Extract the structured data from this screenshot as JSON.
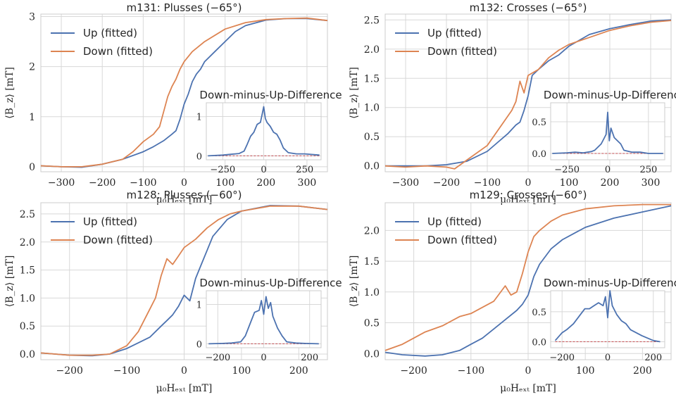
{
  "chart_data": [
    {
      "type": "line",
      "title": "m131: Plusses (−65°)",
      "xlabel": "μ₀Hₑₓₜ [mT]",
      "ylabel": "⟨B_z⟩ [mT]",
      "xlim": [
        -350,
        350
      ],
      "ylim": [
        -0.1,
        3.05
      ],
      "xticks": [
        -300,
        -200,
        -100,
        0,
        100,
        200,
        300
      ],
      "xtick_labels": [
        "−300",
        "−200",
        "−100",
        "0",
        "100",
        "200",
        "300"
      ],
      "yticks": [
        0,
        1,
        2,
        3
      ],
      "ytick_labels": [
        "0",
        "1",
        "2",
        "3"
      ],
      "legend_position": "upper-left",
      "series": [
        {
          "name": "Up (fitted)",
          "color": "#4c72b0",
          "x": [
            -350,
            -300,
            -250,
            -200,
            -150,
            -100,
            -75,
            -50,
            -30,
            -20,
            -10,
            0,
            10,
            20,
            30,
            40,
            50,
            75,
            100,
            125,
            150,
            200,
            250,
            300,
            350
          ],
          "y": [
            0.02,
            0.0,
            -0.01,
            0.05,
            0.15,
            0.3,
            0.4,
            0.52,
            0.65,
            0.72,
            0.95,
            1.25,
            1.45,
            1.7,
            1.85,
            1.95,
            2.1,
            2.3,
            2.5,
            2.7,
            2.82,
            2.93,
            2.96,
            2.96,
            2.92
          ]
        },
        {
          "name": "Down (fitted)",
          "color": "#dd8452",
          "x": [
            -350,
            -300,
            -250,
            -200,
            -150,
            -125,
            -100,
            -75,
            -60,
            -50,
            -40,
            -30,
            -20,
            -10,
            0,
            20,
            50,
            100,
            150,
            200,
            250,
            300,
            350
          ],
          "y": [
            0.02,
            0.0,
            0.0,
            0.05,
            0.15,
            0.3,
            0.5,
            0.65,
            0.8,
            1.1,
            1.4,
            1.6,
            1.75,
            1.95,
            2.1,
            2.3,
            2.5,
            2.75,
            2.88,
            2.94,
            2.96,
            2.97,
            2.92
          ]
        }
      ],
      "inset": {
        "title": "Down-minus-Up-Difference",
        "xlim": [
          -350,
          350
        ],
        "ylim": [
          -0.1,
          1.35
        ],
        "xticks": [
          -250,
          0,
          250
        ],
        "xtick_labels": [
          "−250",
          "0",
          "250"
        ],
        "yticks": [
          0,
          1
        ],
        "ytick_labels": [
          "0",
          "1"
        ],
        "line_color": "#4c72b0",
        "zero_line_color": "#c44e52",
        "x": [
          -340,
          -250,
          -200,
          -150,
          -120,
          -100,
          -80,
          -60,
          -40,
          -20,
          -10,
          0,
          10,
          20,
          40,
          60,
          80,
          100,
          120,
          150,
          200,
          250,
          340
        ],
        "y": [
          0.0,
          0.02,
          0.04,
          0.06,
          0.12,
          0.3,
          0.5,
          0.6,
          0.8,
          0.85,
          1.05,
          1.25,
          0.95,
          0.85,
          0.75,
          0.6,
          0.55,
          0.4,
          0.2,
          0.08,
          0.05,
          0.05,
          0.02
        ]
      }
    },
    {
      "type": "line",
      "title": "m132: Crosses (−65°)",
      "xlabel": "μ₀Hₑₓₜ [mT]",
      "ylabel": "⟨B_z⟩ [mT]",
      "xlim": [
        -350,
        350
      ],
      "ylim": [
        -0.1,
        2.6
      ],
      "xticks": [
        -300,
        -200,
        -100,
        0,
        100,
        200,
        300
      ],
      "xtick_labels": [
        "−300",
        "−200",
        "−100",
        "0",
        "100",
        "200",
        "300"
      ],
      "yticks": [
        0,
        0.5,
        1.0,
        1.5,
        2.0,
        2.5
      ],
      "ytick_labels": [
        "0.0",
        "0.5",
        "1.0",
        "1.5",
        "2.0",
        "2.5"
      ],
      "legend_position": "upper-left",
      "series": [
        {
          "name": "Up (fitted)",
          "color": "#4c72b0",
          "x": [
            -350,
            -300,
            -250,
            -200,
            -150,
            -100,
            -75,
            -50,
            -30,
            -20,
            -10,
            0,
            10,
            25,
            50,
            75,
            100,
            150,
            200,
            250,
            300,
            350
          ],
          "y": [
            0.0,
            0.0,
            0.0,
            0.02,
            0.08,
            0.25,
            0.4,
            0.55,
            0.7,
            0.75,
            0.95,
            1.2,
            1.55,
            1.65,
            1.8,
            1.9,
            2.05,
            2.25,
            2.35,
            2.42,
            2.48,
            2.5
          ]
        },
        {
          "name": "Down (fitted)",
          "color": "#dd8452",
          "x": [
            -350,
            -300,
            -250,
            -200,
            -180,
            -150,
            -100,
            -60,
            -40,
            -30,
            -20,
            -10,
            0,
            25,
            50,
            75,
            100,
            150,
            200,
            250,
            300,
            350
          ],
          "y": [
            0.0,
            -0.02,
            0.0,
            -0.02,
            -0.05,
            0.1,
            0.35,
            0.75,
            0.95,
            1.1,
            1.45,
            1.25,
            1.55,
            1.65,
            1.85,
            1.98,
            2.08,
            2.2,
            2.32,
            2.4,
            2.46,
            2.49
          ]
        }
      ],
      "inset": {
        "title": "Down-minus-Up-Difference",
        "xlim": [
          -350,
          350
        ],
        "ylim": [
          -0.1,
          0.8
        ],
        "xticks": [
          -250,
          0,
          250
        ],
        "xtick_labels": [
          "−250",
          "0",
          "250"
        ],
        "yticks": [
          0,
          0.5
        ],
        "ytick_labels": [
          "0.0",
          "0.5"
        ],
        "line_color": "#4c72b0",
        "zero_line_color": "#c44e52",
        "x": [
          -340,
          -250,
          -200,
          -150,
          -100,
          -80,
          -60,
          -40,
          -20,
          -10,
          0,
          10,
          20,
          40,
          60,
          80,
          100,
          150,
          200,
          250,
          340
        ],
        "y": [
          0.0,
          0.01,
          0.02,
          0.01,
          0.03,
          0.05,
          0.1,
          0.15,
          0.25,
          0.3,
          0.65,
          0.2,
          0.4,
          0.25,
          0.2,
          0.15,
          0.05,
          0.02,
          0.02,
          0.0,
          0.0
        ]
      }
    },
    {
      "type": "line",
      "title": "m128: Plusses (−60°)",
      "xlabel": "μ₀Hₑₓₜ [mT]",
      "ylabel": "⟨B_z⟩ [mT]",
      "xlim": [
        -250,
        250
      ],
      "ylim": [
        -0.1,
        2.7
      ],
      "xticks": [
        -200,
        -100,
        0,
        100,
        200
      ],
      "xtick_labels": [
        "−200",
        "−100",
        "0",
        "100",
        "200"
      ],
      "yticks": [
        0,
        0.5,
        1.0,
        1.5,
        2.0,
        2.5
      ],
      "ytick_labels": [
        "0.0",
        "0.5",
        "1.0",
        "1.5",
        "2.0",
        "2.5"
      ],
      "legend_position": "upper-left",
      "series": [
        {
          "name": "Up (fitted)",
          "color": "#4c72b0",
          "x": [
            -250,
            -200,
            -160,
            -130,
            -100,
            -80,
            -60,
            -40,
            -30,
            -20,
            -10,
            0,
            10,
            20,
            30,
            40,
            50,
            75,
            100,
            150,
            200,
            250
          ],
          "y": [
            0.02,
            -0.02,
            -0.03,
            0.0,
            0.1,
            0.2,
            0.3,
            0.5,
            0.6,
            0.7,
            0.85,
            1.05,
            0.95,
            1.35,
            1.6,
            1.85,
            2.1,
            2.4,
            2.55,
            2.65,
            2.64,
            2.58
          ]
        },
        {
          "name": "Down (fitted)",
          "color": "#dd8452",
          "x": [
            -250,
            -200,
            -160,
            -130,
            -100,
            -80,
            -60,
            -50,
            -40,
            -30,
            -20,
            -10,
            0,
            20,
            40,
            60,
            80,
            100,
            150,
            200,
            250
          ],
          "y": [
            0.02,
            -0.02,
            -0.02,
            0.0,
            0.15,
            0.4,
            0.8,
            1.0,
            1.4,
            1.7,
            1.6,
            1.75,
            1.9,
            2.05,
            2.25,
            2.4,
            2.5,
            2.55,
            2.64,
            2.64,
            2.58
          ]
        }
      ],
      "inset": {
        "title": "Down-minus-Up-Difference",
        "xlim": [
          -250,
          250
        ],
        "ylim": [
          -0.1,
          1.35
        ],
        "xticks": [
          -200,
          0,
          200
        ],
        "xtick_labels": [
          "−200",
          "0",
          "200"
        ],
        "yticks": [
          0,
          1
        ],
        "ytick_labels": [
          "0",
          "1"
        ],
        "line_color": "#4c72b0",
        "zero_line_color": "#c44e52",
        "x": [
          -240,
          -180,
          -140,
          -100,
          -80,
          -60,
          -40,
          -20,
          -10,
          0,
          10,
          20,
          30,
          40,
          60,
          80,
          100,
          140,
          180,
          240
        ],
        "y": [
          0.0,
          0.01,
          0.02,
          0.05,
          0.2,
          0.5,
          0.8,
          0.85,
          1.1,
          0.75,
          1.2,
          0.9,
          1.05,
          0.7,
          0.4,
          0.2,
          0.05,
          0.02,
          0.01,
          0.0
        ]
      }
    },
    {
      "type": "line",
      "title": "m129: Crosses (−60°)",
      "xlabel": "μ₀Hₑₓₜ [mT]",
      "ylabel": "⟨B_z⟩ [mT]",
      "xlim": [
        -250,
        250
      ],
      "ylim": [
        -0.1,
        2.45
      ],
      "xticks": [
        -200,
        -100,
        0,
        100,
        200
      ],
      "xtick_labels": [
        "−200",
        "−100",
        "0",
        "100",
        "200"
      ],
      "yticks": [
        0,
        0.5,
        1.0,
        1.5,
        2.0
      ],
      "ytick_labels": [
        "0.0",
        "0.5",
        "1.0",
        "1.5",
        "2.0"
      ],
      "legend_position": "upper-left",
      "series": [
        {
          "name": "Up (fitted)",
          "color": "#4c72b0",
          "x": [
            -250,
            -220,
            -180,
            -150,
            -120,
            -100,
            -80,
            -60,
            -40,
            -20,
            -10,
            0,
            10,
            20,
            40,
            60,
            80,
            100,
            150,
            200,
            250
          ],
          "y": [
            0.02,
            -0.02,
            -0.04,
            -0.02,
            0.05,
            0.15,
            0.25,
            0.4,
            0.55,
            0.7,
            0.8,
            0.95,
            1.25,
            1.45,
            1.7,
            1.85,
            1.95,
            2.05,
            2.2,
            2.3,
            2.4
          ]
        },
        {
          "name": "Down (fitted)",
          "color": "#dd8452",
          "x": [
            -250,
            -220,
            -180,
            -150,
            -120,
            -100,
            -80,
            -60,
            -40,
            -30,
            -20,
            -10,
            0,
            10,
            20,
            40,
            60,
            80,
            100,
            150,
            200,
            250
          ],
          "y": [
            0.05,
            0.15,
            0.35,
            0.45,
            0.6,
            0.65,
            0.75,
            0.85,
            1.1,
            0.95,
            1.0,
            1.3,
            1.65,
            1.9,
            2.0,
            2.15,
            2.25,
            2.3,
            2.35,
            2.4,
            2.42,
            2.42
          ]
        }
      ],
      "inset": {
        "title": "Down-minus-Up-Difference",
        "xlim": [
          -250,
          250
        ],
        "ylim": [
          -0.1,
          0.85
        ],
        "xticks": [
          -200,
          0,
          200
        ],
        "xtick_labels": [
          "−200",
          "0",
          "200"
        ],
        "yticks": [
          0,
          0.5
        ],
        "ytick_labels": [
          "0.0",
          "0.5"
        ],
        "line_color": "#4c72b0",
        "zero_line_color": "#c44e52",
        "x": [
          -230,
          -200,
          -180,
          -150,
          -120,
          -100,
          -80,
          -60,
          -40,
          -20,
          -10,
          0,
          10,
          20,
          40,
          60,
          80,
          100,
          150,
          200,
          230
        ],
        "y": [
          0.02,
          0.15,
          0.2,
          0.3,
          0.45,
          0.55,
          0.55,
          0.6,
          0.65,
          0.6,
          0.75,
          0.4,
          0.85,
          0.6,
          0.45,
          0.35,
          0.3,
          0.2,
          0.1,
          0.02,
          0.0
        ]
      }
    }
  ]
}
